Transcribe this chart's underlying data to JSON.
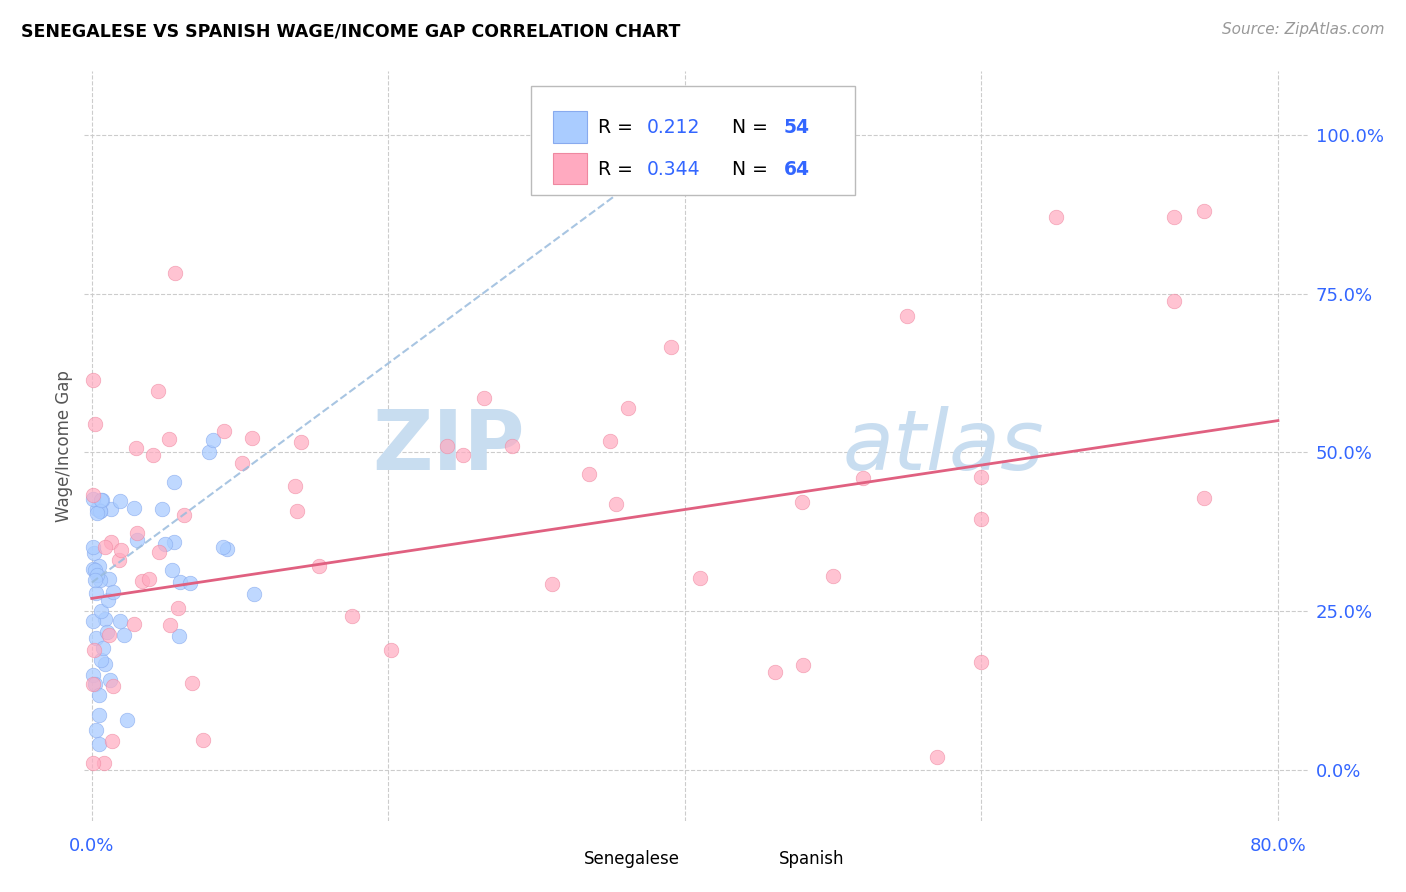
{
  "title": "SENEGALESE VS SPANISH WAGE/INCOME GAP CORRELATION CHART",
  "source": "Source: ZipAtlas.com",
  "ylabel": "Wage/Income Gap",
  "ytick_labels": [
    "0.0%",
    "25.0%",
    "50.0%",
    "75.0%",
    "100.0%"
  ],
  "ytick_values": [
    0.0,
    0.25,
    0.5,
    0.75,
    1.0
  ],
  "xtick_values": [
    0.0,
    0.2,
    0.4,
    0.6,
    0.8
  ],
  "xlim": [
    -0.005,
    0.82
  ],
  "ylim": [
    -0.08,
    1.1
  ],
  "senegalese_color": "#aaccff",
  "senegalese_edge_color": "#88aaee",
  "spanish_color": "#ffaac0",
  "spanish_edge_color": "#ee88a0",
  "senegalese_trend_color": "#99bbdd",
  "spanish_trend_color": "#e06080",
  "blue_text_color": "#3366ff",
  "watermark_zip_color": "#c8ddf0",
  "watermark_atlas_color": "#c8ddf0",
  "grid_color": "#cccccc",
  "background_color": "#ffffff",
  "sen_trend_x": [
    0.0,
    0.42
  ],
  "sen_trend_y": [
    0.295,
    1.02
  ],
  "spa_trend_x": [
    0.0,
    0.8
  ],
  "spa_trend_y": [
    0.27,
    0.55
  ]
}
